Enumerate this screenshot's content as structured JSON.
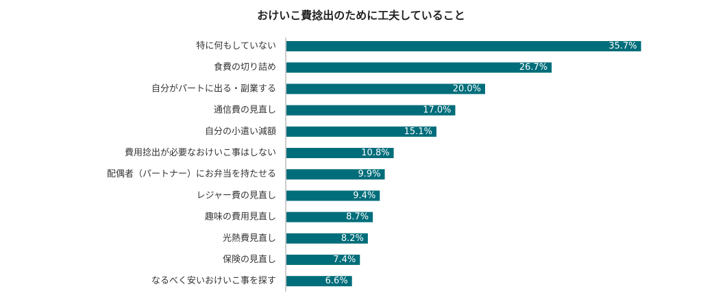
{
  "chart_data": {
    "type": "bar",
    "orientation": "horizontal",
    "title": "おけいこ費捻出のために工夫していること",
    "categories": [
      "特に何もしていない",
      "食費の切り詰め",
      "自分がパートに出る・副業する",
      "通信費の見直し",
      "自分の小遣い減額",
      "費用捻出が必要なおけいこ事はしない",
      "配偶者（パートナー）にお弁当を持たせる",
      "レジャー費の見直し",
      "趣味の費用見直し",
      "光熱費見直し",
      "保険の見直し",
      "なるべく安いおけいこ事を探す"
    ],
    "values": [
      35.7,
      26.7,
      20.0,
      17.0,
      15.1,
      10.8,
      9.9,
      9.4,
      8.7,
      8.2,
      7.4,
      6.6
    ],
    "value_labels": [
      "35.7%",
      "26.7%",
      "20.0%",
      "17.0%",
      "15.1%",
      "10.8%",
      "9.9%",
      "9.4%",
      "8.7%",
      "8.2%",
      "7.4%",
      "6.6%"
    ],
    "xlim": [
      0,
      40
    ],
    "grid": false,
    "legend": "none",
    "bar_color": "#006d7a",
    "axis_color": "#999999"
  }
}
